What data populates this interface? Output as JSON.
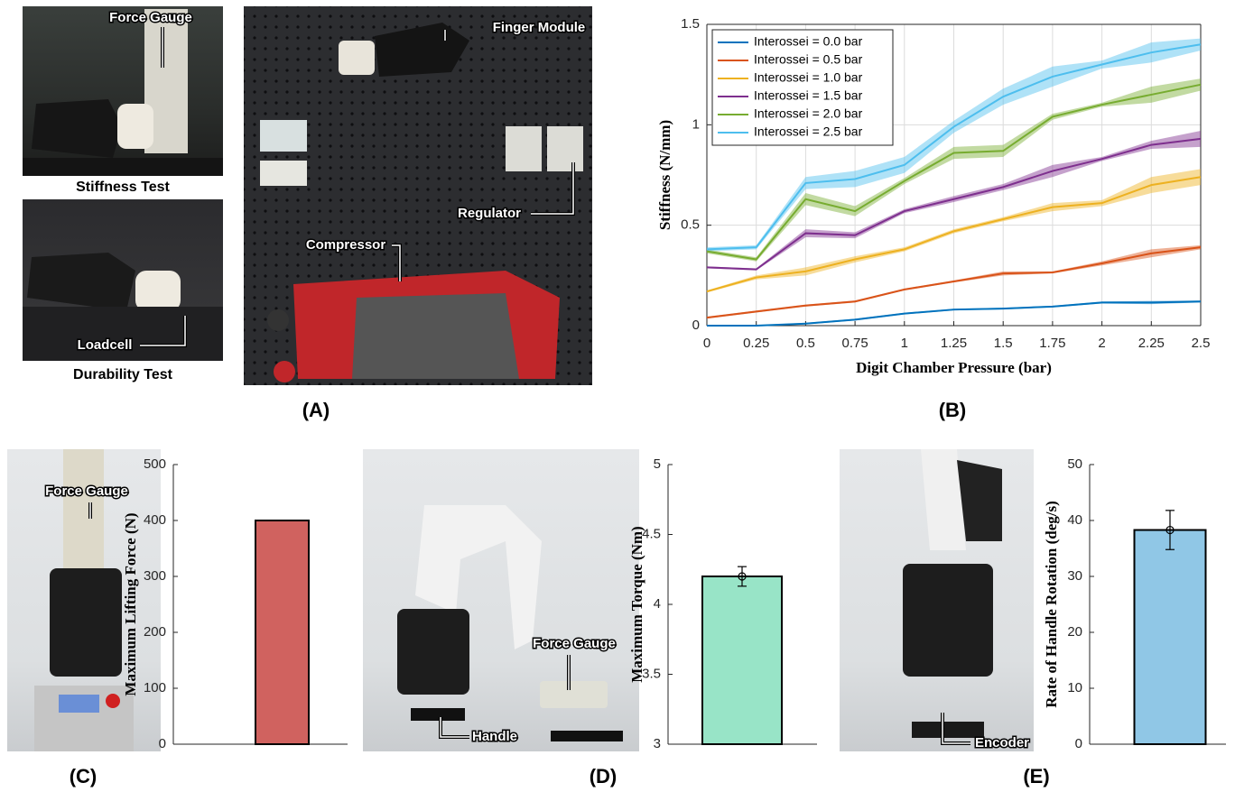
{
  "photos": {
    "stiffness": {
      "label": "Force Gauge",
      "caption": "Stiffness Test"
    },
    "durability": {
      "label": "Loadcell",
      "caption": "Durability Test"
    },
    "setup": {
      "labels": [
        "Finger Module",
        "Regulator",
        "Compressor"
      ]
    },
    "lifting": {
      "label": "Force Gauge"
    },
    "torque": {
      "labels": [
        "Force Gauge",
        "Handle"
      ]
    },
    "rotation": {
      "label": "Encoder"
    }
  },
  "panel_labels": [
    "(A)",
    "(B)",
    "(C)",
    "(D)",
    "(E)"
  ],
  "chart_data": [
    {
      "type": "line",
      "xlabel": "Digit Chamber Pressure (bar)",
      "ylabel": "Stiffness (N/mm)",
      "x": [
        0,
        0.25,
        0.5,
        0.75,
        1,
        1.25,
        1.5,
        1.75,
        2,
        2.25,
        2.5
      ],
      "xlim": [
        0,
        2.5
      ],
      "xticks": [
        0,
        0.25,
        0.5,
        0.75,
        1,
        1.25,
        1.5,
        1.75,
        2,
        2.25,
        2.5
      ],
      "ylim": [
        0,
        1.5
      ],
      "yticks": [
        0,
        0.5,
        1,
        1.5
      ],
      "grid": true,
      "legend": "upper-left",
      "series": [
        {
          "name": "Interossei = 0.0 bar",
          "color": "#0072bd",
          "values": [
            0,
            0,
            0.01,
            0.03,
            0.06,
            0.08,
            0.085,
            0.095,
            0.115,
            0.115,
            0.12
          ],
          "errors": [
            0.003,
            0.003,
            0.004,
            0.004,
            0.004,
            0.004,
            0.004,
            0.004,
            0.005,
            0.008,
            0.005
          ]
        },
        {
          "name": "Interossei = 0.5 bar",
          "color": "#d95319",
          "values": [
            0.04,
            0.07,
            0.1,
            0.12,
            0.18,
            0.22,
            0.26,
            0.265,
            0.31,
            0.36,
            0.39
          ],
          "errors": [
            0.005,
            0.005,
            0.005,
            0.005,
            0.005,
            0.005,
            0.01,
            0.005,
            0.01,
            0.02,
            0.01
          ]
        },
        {
          "name": "Interossei = 1.0 bar",
          "color": "#edb120",
          "values": [
            0.17,
            0.24,
            0.27,
            0.33,
            0.38,
            0.47,
            0.53,
            0.59,
            0.61,
            0.7,
            0.74
          ],
          "errors": [
            0.005,
            0.01,
            0.02,
            0.015,
            0.01,
            0.01,
            0.01,
            0.02,
            0.015,
            0.04,
            0.04
          ]
        },
        {
          "name": "Interossei = 1.5 bar",
          "color": "#7e2f8e",
          "values": [
            0.29,
            0.28,
            0.46,
            0.45,
            0.57,
            0.63,
            0.69,
            0.77,
            0.83,
            0.9,
            0.93
          ],
          "errors": [
            0.005,
            0.005,
            0.02,
            0.015,
            0.01,
            0.015,
            0.015,
            0.03,
            0.01,
            0.02,
            0.04
          ]
        },
        {
          "name": "Interossei = 2.0 bar",
          "color": "#77ac30",
          "values": [
            0.37,
            0.33,
            0.63,
            0.57,
            0.72,
            0.86,
            0.87,
            1.04,
            1.1,
            1.15,
            1.2
          ],
          "errors": [
            0.01,
            0.01,
            0.03,
            0.025,
            0.015,
            0.03,
            0.03,
            0.015,
            0.01,
            0.04,
            0.03
          ]
        },
        {
          "name": "Interossei = 2.5 bar",
          "color": "#4dbeee",
          "values": [
            0.38,
            0.39,
            0.71,
            0.73,
            0.8,
            0.99,
            1.14,
            1.24,
            1.3,
            1.36,
            1.4
          ],
          "errors": [
            0.01,
            0.01,
            0.03,
            0.04,
            0.04,
            0.03,
            0.04,
            0.05,
            0.02,
            0.05,
            0.03
          ]
        }
      ]
    },
    {
      "type": "bar",
      "ylabel": "Maximum Lifting Force (N)",
      "categories": [
        null
      ],
      "values": [
        400
      ],
      "color": "#d0625f",
      "ylim": [
        0,
        500
      ],
      "yticks": [
        0,
        100,
        200,
        300,
        400,
        500
      ]
    },
    {
      "type": "bar",
      "ylabel": "Maximum Torque (Nm)",
      "categories": [
        null
      ],
      "values": [
        4.2
      ],
      "errors": [
        0.07
      ],
      "color": "#98e4c7",
      "ylim": [
        3,
        5
      ],
      "yticks": [
        3,
        3.5,
        4,
        4.5,
        5
      ]
    },
    {
      "type": "bar",
      "ylabel": "Rate of Handle Rotation (deg/s)",
      "categories": [
        null
      ],
      "values": [
        38.3
      ],
      "errors": [
        3.5
      ],
      "color": "#90c7e6",
      "ylim": [
        0,
        50
      ],
      "yticks": [
        0,
        10,
        20,
        30,
        40,
        50
      ]
    }
  ]
}
